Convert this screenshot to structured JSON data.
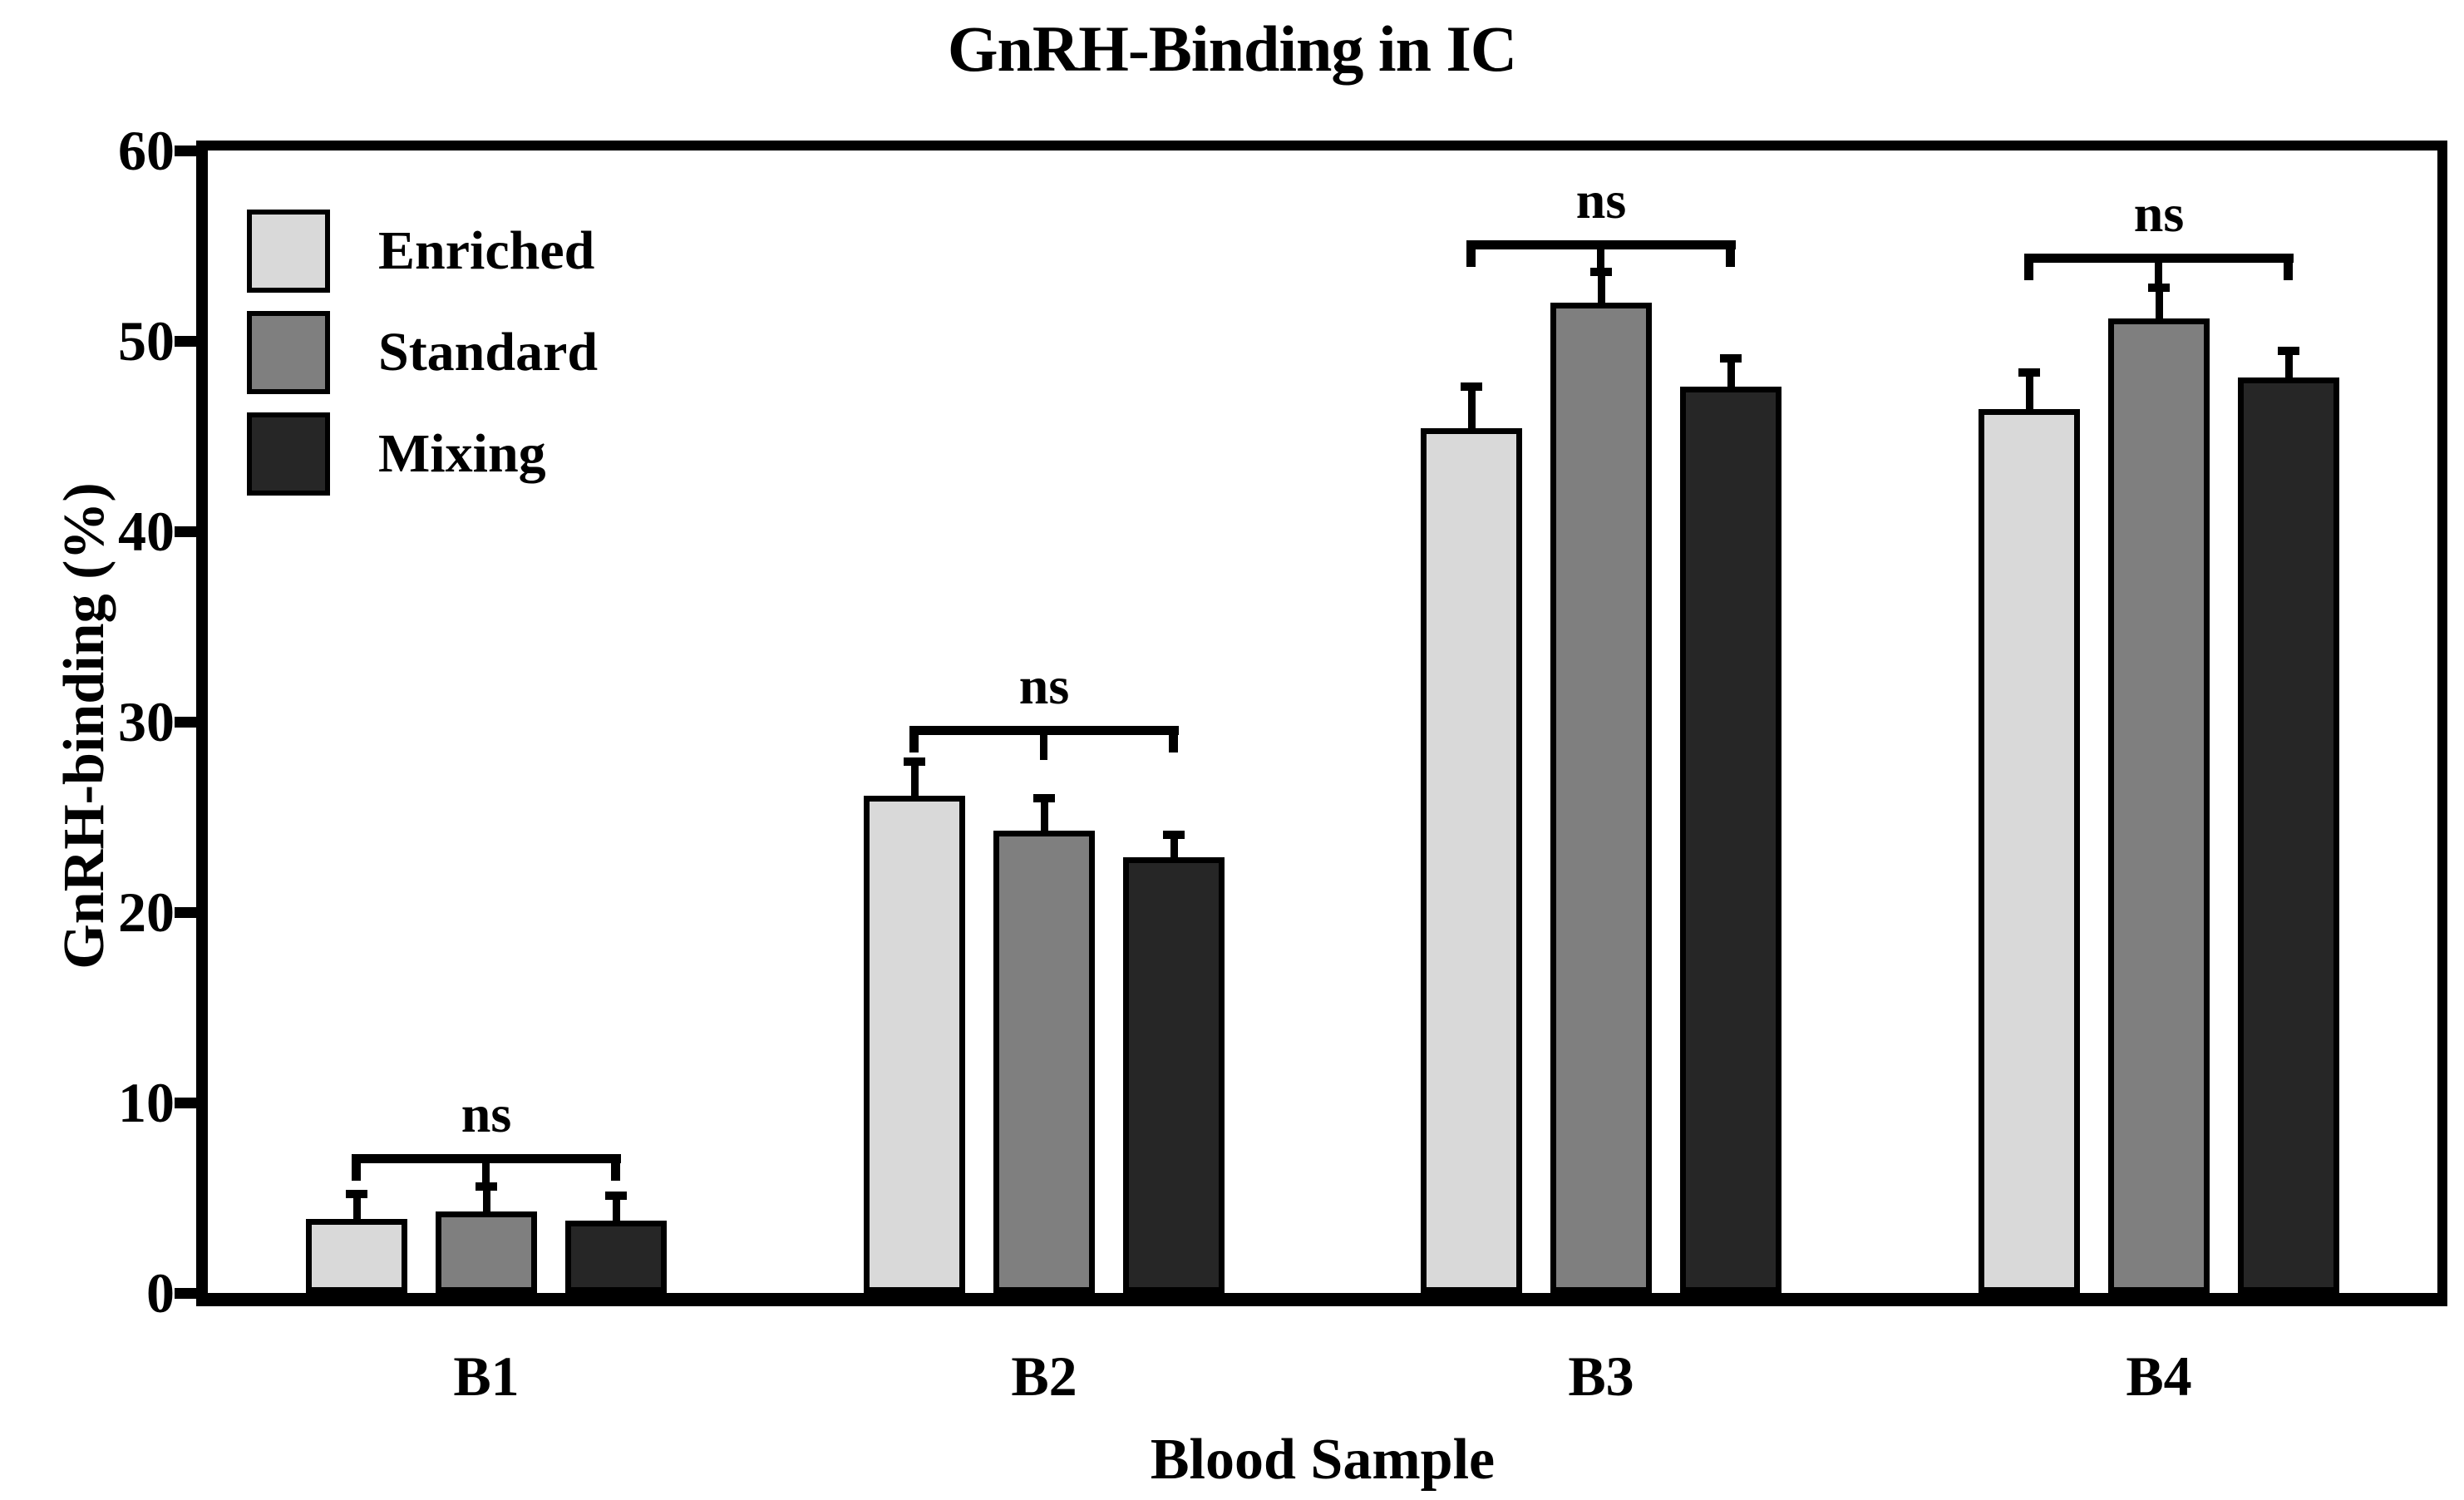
{
  "chart_data": {
    "type": "bar",
    "title": "GnRH-Binding in IC",
    "xlabel": "Blood Sample",
    "ylabel": "GnRH-binding (%)",
    "ylim": [
      0,
      60
    ],
    "yticks": [
      0,
      10,
      20,
      30,
      40,
      50,
      60
    ],
    "categories": [
      "B1",
      "B2",
      "B3",
      "B4"
    ],
    "series": [
      {
        "name": "Enriched",
        "color": "#d9d9d9",
        "values": [
          3.9,
          26.1,
          45.4,
          46.4
        ],
        "errors": [
          1.3,
          1.8,
          2.2,
          1.9
        ]
      },
      {
        "name": "Standard",
        "color": "#7f7f7f",
        "values": [
          4.3,
          24.3,
          52.0,
          51.2
        ],
        "errors": [
          1.3,
          1.7,
          1.6,
          1.6
        ]
      },
      {
        "name": "Mixing",
        "color": "#262626",
        "values": [
          3.8,
          22.9,
          47.6,
          48.1
        ],
        "errors": [
          1.3,
          1.2,
          1.5,
          1.4
        ]
      }
    ],
    "annotations": [
      {
        "label": "ns",
        "group": "B1",
        "height": 7.3
      },
      {
        "label": "ns",
        "group": "B2",
        "height": 29.8
      },
      {
        "label": "ns",
        "group": "B3",
        "height": 55.3
      },
      {
        "label": "ns",
        "group": "B4",
        "height": 54.6
      }
    ],
    "legend_position": "upper-left",
    "grid": false,
    "frame_color": "#000000",
    "background_color": "#ffffff"
  }
}
